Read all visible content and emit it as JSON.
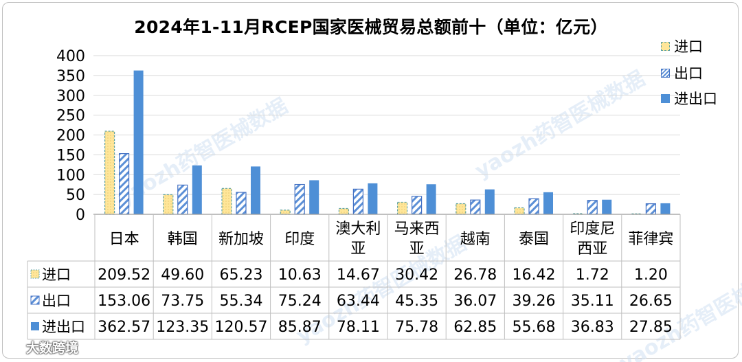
{
  "chart_data": {
    "type": "bar",
    "title": "2024年1-11月RCEP国家医械贸易总额前十（单位：亿元）",
    "categories": [
      "日本",
      "韩国",
      "新加坡",
      "印度",
      "澳大利亚",
      "马来西亚",
      "越南",
      "泰国",
      "印度尼西亚",
      "菲律宾"
    ],
    "category_lines": [
      [
        "日本"
      ],
      [
        "韩国"
      ],
      [
        "新加坡"
      ],
      [
        "印度"
      ],
      [
        "澳大利",
        "亚"
      ],
      [
        "马来西",
        "亚"
      ],
      [
        "越南"
      ],
      [
        "泰国"
      ],
      [
        "印度尼",
        "西亚"
      ],
      [
        "菲律宾"
      ]
    ],
    "series": [
      {
        "name": "进口",
        "values": [
          209.52,
          49.6,
          65.23,
          10.63,
          14.67,
          30.42,
          26.78,
          16.42,
          1.72,
          1.2
        ],
        "labels": [
          "209.52",
          "49.60",
          "65.23",
          "10.63",
          "14.67",
          "30.42",
          "26.78",
          "16.42",
          "1.72",
          "1.20"
        ],
        "color": "#ffe699",
        "edge": "#5fa3a3",
        "pattern": "dots"
      },
      {
        "name": "出口",
        "values": [
          153.06,
          73.75,
          55.34,
          75.24,
          63.44,
          45.35,
          36.07,
          39.26,
          35.11,
          26.65
        ],
        "labels": [
          "153.06",
          "73.75",
          "55.34",
          "75.24",
          "63.44",
          "45.35",
          "36.07",
          "39.26",
          "35.11",
          "26.65"
        ],
        "color": "#5b8fd6",
        "edge": "#4472c4",
        "pattern": "hatch"
      },
      {
        "name": "进出口",
        "values": [
          362.57,
          123.35,
          120.57,
          85.87,
          78.11,
          75.78,
          62.85,
          55.68,
          36.83,
          27.85
        ],
        "labels": [
          "362.57",
          "123.35",
          "120.57",
          "85.87",
          "78.11",
          "75.78",
          "62.85",
          "55.68",
          "36.83",
          "27.85"
        ],
        "color": "#4e8fd6",
        "edge": "#4e8fd6",
        "pattern": "solid"
      }
    ],
    "ylim": [
      0,
      400
    ],
    "yticks": [
      0,
      50,
      100,
      150,
      200,
      250,
      300,
      350,
      400
    ],
    "grid": true,
    "legend_position": "right",
    "data_table": true
  },
  "watermark": {
    "brand": "大数跨境",
    "overlay": "yaozh药智医械数据"
  }
}
